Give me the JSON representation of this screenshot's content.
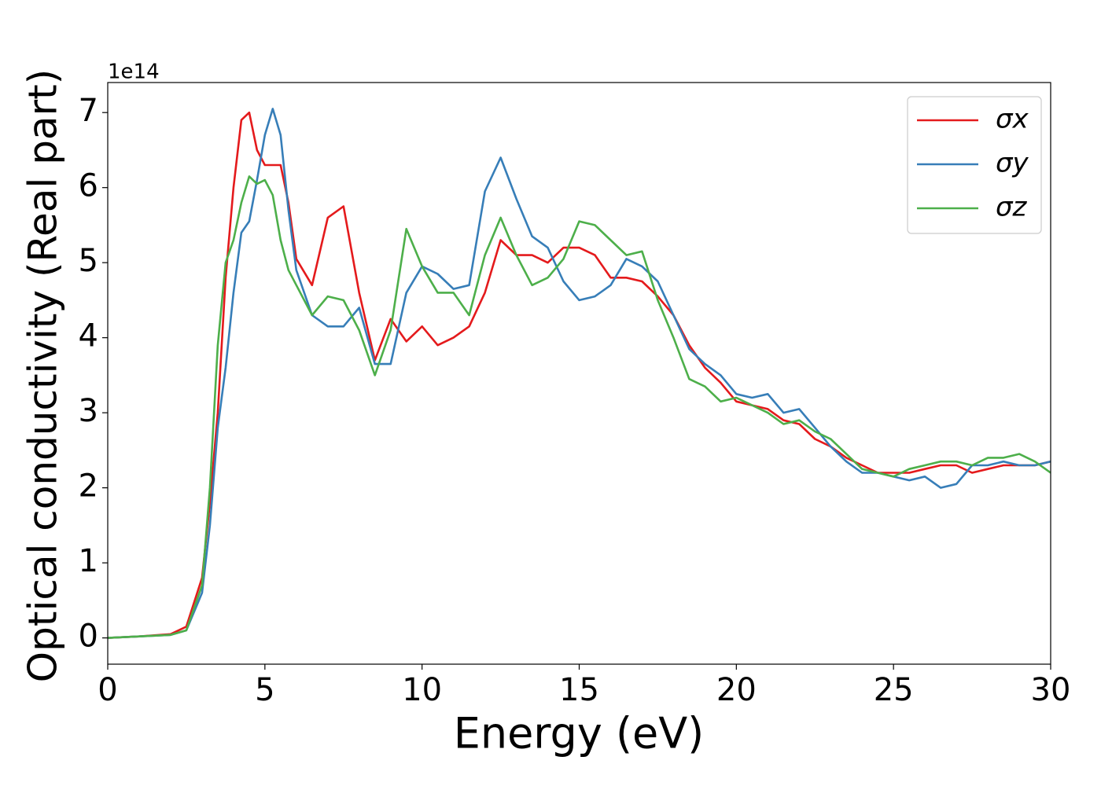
{
  "chart_data": {
    "type": "line",
    "xlabel": "Energy (eV)",
    "ylabel": "Optical conductivity (Real part)",
    "y_offset_label": "1e14",
    "x": [
      0,
      1,
      2,
      2.5,
      3,
      3.25,
      3.5,
      3.75,
      4,
      4.25,
      4.5,
      4.75,
      5,
      5.25,
      5.5,
      5.75,
      6,
      6.5,
      7,
      7.5,
      8,
      8.5,
      9,
      9.5,
      10,
      10.5,
      11,
      11.5,
      12,
      12.5,
      13,
      13.5,
      14,
      14.5,
      15,
      15.5,
      16,
      16.5,
      17,
      17.5,
      18,
      18.5,
      19,
      19.5,
      20,
      20.5,
      21,
      21.5,
      22,
      22.5,
      23,
      23.5,
      24,
      24.5,
      25,
      25.5,
      26,
      26.5,
      27,
      27.5,
      28,
      28.5,
      29,
      29.5,
      30
    ],
    "series": [
      {
        "name": "σx",
        "color": "#e41a1c",
        "values": [
          0,
          0.02,
          0.05,
          0.15,
          0.8,
          1.8,
          3.0,
          4.8,
          6.0,
          6.9,
          7.0,
          6.5,
          6.3,
          6.3,
          6.3,
          5.8,
          5.05,
          4.7,
          5.6,
          5.75,
          4.6,
          3.7,
          4.25,
          3.95,
          4.15,
          3.9,
          4.0,
          4.15,
          4.6,
          5.3,
          5.1,
          5.1,
          5.0,
          5.2,
          5.2,
          5.1,
          4.8,
          4.8,
          4.75,
          4.55,
          4.3,
          3.9,
          3.6,
          3.4,
          3.15,
          3.1,
          3.05,
          2.9,
          2.85,
          2.65,
          2.55,
          2.4,
          2.3,
          2.2,
          2.2,
          2.2,
          2.25,
          2.3,
          2.3,
          2.2,
          2.25,
          2.3,
          2.3,
          2.3,
          2.35
        ]
      },
      {
        "name": "σy",
        "color": "#377eb8",
        "values": [
          0,
          0.02,
          0.04,
          0.1,
          0.6,
          1.5,
          2.8,
          3.6,
          4.6,
          5.4,
          5.55,
          6.1,
          6.7,
          7.05,
          6.7,
          5.7,
          4.9,
          4.3,
          4.15,
          4.15,
          4.4,
          3.65,
          3.65,
          4.6,
          4.95,
          4.85,
          4.65,
          4.7,
          5.95,
          6.4,
          5.85,
          5.35,
          5.2,
          4.75,
          4.5,
          4.55,
          4.7,
          5.05,
          4.95,
          4.75,
          4.3,
          3.85,
          3.65,
          3.5,
          3.25,
          3.2,
          3.25,
          3.0,
          3.05,
          2.8,
          2.55,
          2.35,
          2.2,
          2.2,
          2.15,
          2.1,
          2.15,
          2.0,
          2.05,
          2.3,
          2.3,
          2.35,
          2.3,
          2.3,
          2.35
        ]
      },
      {
        "name": "σz",
        "color": "#4daf4a",
        "values": [
          0,
          0.02,
          0.04,
          0.1,
          0.7,
          2.0,
          3.9,
          5.0,
          5.3,
          5.8,
          6.15,
          6.05,
          6.1,
          5.9,
          5.3,
          4.9,
          4.7,
          4.3,
          4.55,
          4.5,
          4.1,
          3.5,
          4.1,
          5.45,
          4.95,
          4.6,
          4.6,
          4.3,
          5.1,
          5.6,
          5.1,
          4.7,
          4.8,
          5.05,
          5.55,
          5.5,
          5.3,
          5.1,
          5.15,
          4.5,
          4.0,
          3.45,
          3.35,
          3.15,
          3.2,
          3.1,
          3.0,
          2.85,
          2.9,
          2.75,
          2.65,
          2.45,
          2.25,
          2.2,
          2.15,
          2.25,
          2.3,
          2.35,
          2.35,
          2.3,
          2.4,
          2.4,
          2.45,
          2.35,
          2.2
        ]
      }
    ],
    "xlim": [
      0,
      30
    ],
    "xticks": [
      0,
      5,
      10,
      15,
      20,
      25,
      30
    ],
    "ylim": [
      -0.35,
      7.4
    ],
    "yticks": [
      0,
      1,
      2,
      3,
      4,
      5,
      6,
      7
    ],
    "grid": false,
    "legend": "upper right"
  }
}
